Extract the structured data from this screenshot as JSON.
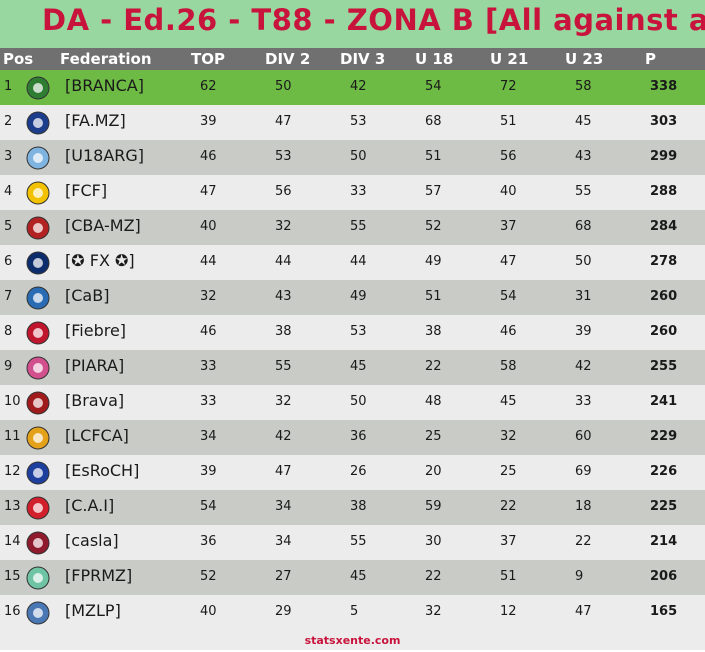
{
  "title": "DA - Ed.26 - T88 - ZONA B  [All against all]",
  "columns": {
    "pos": "Pos",
    "federation": "Federation",
    "top": "TOP",
    "div2": "DIV 2",
    "div3": "DIV 3",
    "u18": "U 18",
    "u21": "U 21",
    "u23": "U 23",
    "p": "P"
  },
  "colors": {
    "title": "#c8143c",
    "title_bg": "#98d8a0",
    "header_bg": "#707070",
    "leader_bg": "#6dbb45"
  },
  "rows": [
    {
      "pos": "1",
      "name": "[BRANCA]",
      "top": "62",
      "div2": "50",
      "div3": "42",
      "u18": "54",
      "u21": "72",
      "u23": "58",
      "p": "338",
      "logo": "bird-icon",
      "logo_color": "#2e7d32"
    },
    {
      "pos": "2",
      "name": "[FA.MZ]",
      "top": "39",
      "div2": "47",
      "div3": "53",
      "u18": "68",
      "u21": "51",
      "u23": "45",
      "p": "303",
      "logo": "blue-shield-icon",
      "logo_color": "#1c3d8c"
    },
    {
      "pos": "3",
      "name": "[U18ARG]",
      "top": "46",
      "div2": "53",
      "div3": "50",
      "u18": "51",
      "u21": "56",
      "u23": "43",
      "p": "299",
      "logo": "afa-crest-icon",
      "logo_color": "#7fb3e0"
    },
    {
      "pos": "4",
      "name": "[FCF]",
      "top": "47",
      "div2": "56",
      "div3": "33",
      "u18": "57",
      "u21": "40",
      "u23": "55",
      "p": "288",
      "logo": "colombia-crest-icon",
      "logo_color": "#f2c200"
    },
    {
      "pos": "5",
      "name": "[CBA-MZ]",
      "top": "40",
      "div2": "32",
      "div3": "55",
      "u18": "52",
      "u21": "37",
      "u23": "68",
      "p": "284",
      "logo": "eagle-crest-icon",
      "logo_color": "#b22222"
    },
    {
      "pos": "6",
      "name": "[✪ FX ✪]",
      "top": "44",
      "div2": "44",
      "div3": "44",
      "u18": "49",
      "u21": "47",
      "u23": "50",
      "p": "278",
      "logo": "boca-crest-icon",
      "logo_color": "#0d2c6c"
    },
    {
      "pos": "7",
      "name": "[CaB]",
      "top": "32",
      "div2": "43",
      "div3": "49",
      "u18": "51",
      "u21": "54",
      "u23": "31",
      "p": "260",
      "logo": "cab-crest-icon",
      "logo_color": "#2a6cb3"
    },
    {
      "pos": "8",
      "name": "[Fiebre]",
      "top": "46",
      "div2": "38",
      "div3": "53",
      "u18": "38",
      "u21": "46",
      "u23": "39",
      "p": "260",
      "logo": "fiebre-crest-icon",
      "logo_color": "#c0162d"
    },
    {
      "pos": "9",
      "name": "[PIARA]",
      "top": "33",
      "div2": "55",
      "div3": "45",
      "u18": "22",
      "u21": "58",
      "u23": "42",
      "p": "255",
      "logo": "piara-crest-icon",
      "logo_color": "#d3508f"
    },
    {
      "pos": "10",
      "name": "[Brava]",
      "top": "33",
      "div2": "32",
      "div3": "50",
      "u18": "48",
      "u21": "45",
      "u23": "33",
      "p": "241",
      "logo": "brava-crest-icon",
      "logo_color": "#a01c1c"
    },
    {
      "pos": "11",
      "name": "[LCFCA]",
      "top": "34",
      "div2": "42",
      "div3": "36",
      "u18": "25",
      "u21": "32",
      "u23": "60",
      "p": "229",
      "logo": "lcfca-crest-icon",
      "logo_color": "#e3a21a"
    },
    {
      "pos": "12",
      "name": "[EsRoCH]",
      "top": "39",
      "div2": "47",
      "div3": "26",
      "u18": "20",
      "u21": "25",
      "u23": "69",
      "p": "226",
      "logo": "chile-crest-icon",
      "logo_color": "#1d3f9e"
    },
    {
      "pos": "13",
      "name": "[C.A.I]",
      "top": "54",
      "div2": "34",
      "div3": "38",
      "u18": "59",
      "u21": "22",
      "u23": "18",
      "p": "225",
      "logo": "cai-crest-icon",
      "logo_color": "#d11f2c"
    },
    {
      "pos": "14",
      "name": "[casla]",
      "top": "36",
      "div2": "34",
      "div3": "55",
      "u18": "30",
      "u21": "37",
      "u23": "22",
      "p": "214",
      "logo": "casla-crest-icon",
      "logo_color": "#8e1a2c"
    },
    {
      "pos": "15",
      "name": "[FPRMZ]",
      "top": "52",
      "div2": "27",
      "div3": "45",
      "u18": "22",
      "u21": "51",
      "u23": "9",
      "p": "206",
      "logo": "globe-crest-icon",
      "logo_color": "#6fc4a3"
    },
    {
      "pos": "16",
      "name": "[MZLP]",
      "top": "40",
      "div2": "29",
      "div3": "5",
      "u18": "32",
      "u21": "12",
      "u23": "47",
      "p": "165",
      "logo": "mzlp-crest-icon",
      "logo_color": "#4a78b5"
    }
  ],
  "footer": "statsxente.com"
}
